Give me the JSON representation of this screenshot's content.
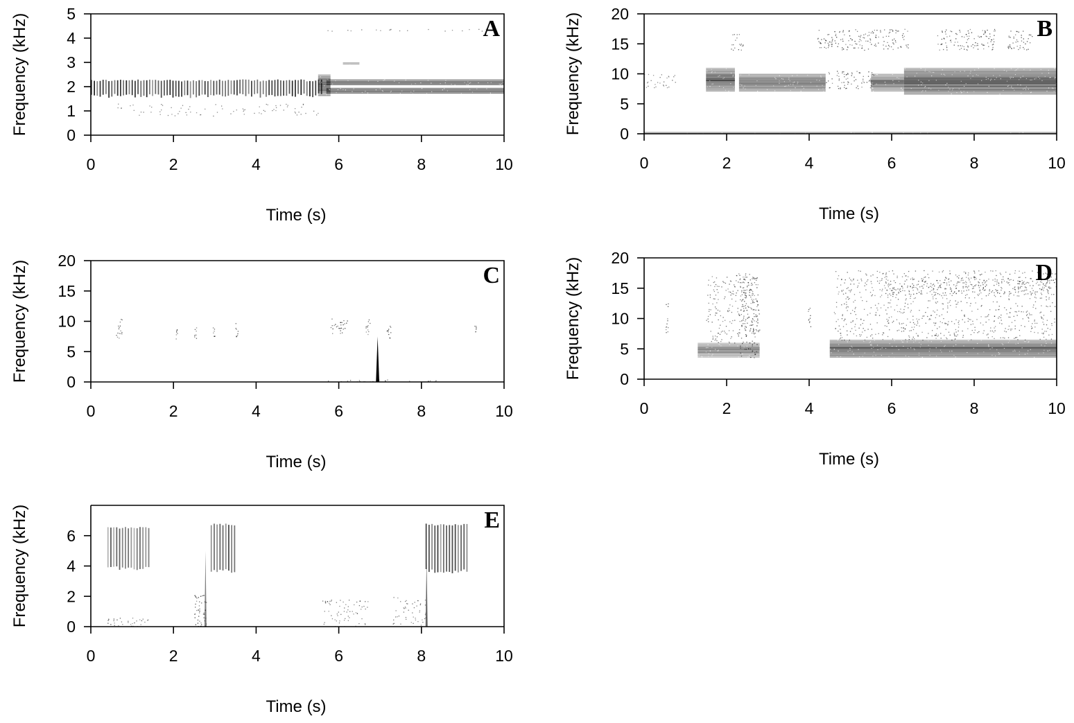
{
  "figure": {
    "panel_count": 5
  },
  "chart_data": [
    {
      "panel": "A",
      "type": "heatmap",
      "xlabel": "Time (s)",
      "ylabel": "Frequency (kHz)",
      "xlim": [
        0,
        10
      ],
      "ylim": [
        0,
        5
      ],
      "xticks": [
        0,
        2,
        4,
        6,
        8,
        10
      ],
      "yticks": [
        0,
        1,
        2,
        3,
        4,
        5
      ],
      "energy": [
        {
          "t": [
            0.0,
            5.6
          ],
          "f": [
            1.6,
            2.3
          ],
          "level": 0.85,
          "style": "pulses"
        },
        {
          "t": [
            5.5,
            5.8
          ],
          "f": [
            1.6,
            2.5
          ],
          "level": 0.9,
          "style": "band"
        },
        {
          "t": [
            5.7,
            10.0
          ],
          "f": [
            2.05,
            2.3
          ],
          "level": 1.0,
          "style": "band"
        },
        {
          "t": [
            5.7,
            10.0
          ],
          "f": [
            1.7,
            1.95
          ],
          "level": 1.0,
          "style": "band"
        },
        {
          "t": [
            6.1,
            6.5
          ],
          "f": [
            2.9,
            3.0
          ],
          "level": 0.5,
          "style": "band"
        },
        {
          "t": [
            5.7,
            9.8
          ],
          "f": [
            4.3,
            4.4
          ],
          "level": 0.25,
          "style": "speckle"
        },
        {
          "t": [
            0.6,
            5.5
          ],
          "f": [
            0.8,
            1.3
          ],
          "level": 0.2,
          "style": "speckle"
        }
      ]
    },
    {
      "panel": "B",
      "type": "heatmap",
      "xlabel": "Time (s)",
      "ylabel": "Frequency (kHz)",
      "xlim": [
        0,
        10
      ],
      "ylim": [
        0,
        20
      ],
      "xticks": [
        0,
        2,
        4,
        6,
        8,
        10
      ],
      "yticks": [
        0,
        5,
        10,
        15,
        20
      ],
      "energy": [
        {
          "t": [
            0.0,
            0.8
          ],
          "f": [
            7.5,
            10.0
          ],
          "level": 0.3,
          "style": "speckle"
        },
        {
          "t": [
            1.5,
            2.2
          ],
          "f": [
            7.0,
            11.0
          ],
          "level": 0.9,
          "style": "band"
        },
        {
          "t": [
            2.3,
            4.4
          ],
          "f": [
            7.0,
            10.0
          ],
          "level": 0.85,
          "style": "band"
        },
        {
          "t": [
            4.4,
            5.6
          ],
          "f": [
            7.5,
            10.5
          ],
          "level": 0.5,
          "style": "speckle"
        },
        {
          "t": [
            5.5,
            6.3
          ],
          "f": [
            7.0,
            10.0
          ],
          "level": 0.8,
          "style": "band"
        },
        {
          "t": [
            6.3,
            10.0
          ],
          "f": [
            6.5,
            11.0
          ],
          "level": 1.0,
          "style": "band"
        },
        {
          "t": [
            2.1,
            2.4
          ],
          "f": [
            14.0,
            17.0
          ],
          "level": 0.4,
          "style": "speckle"
        },
        {
          "t": [
            4.2,
            6.4
          ],
          "f": [
            14.0,
            17.5
          ],
          "level": 0.55,
          "style": "speckle"
        },
        {
          "t": [
            7.1,
            8.5
          ],
          "f": [
            14.0,
            17.5
          ],
          "level": 0.55,
          "style": "speckle"
        },
        {
          "t": [
            8.8,
            9.4
          ],
          "f": [
            14.0,
            17.5
          ],
          "level": 0.5,
          "style": "speckle"
        },
        {
          "t": [
            0.0,
            10.0
          ],
          "f": [
            0.0,
            0.3
          ],
          "level": 0.7,
          "style": "band"
        }
      ]
    },
    {
      "panel": "C",
      "type": "heatmap",
      "xlabel": "Time (s)",
      "ylabel": "Frequency (kHz)",
      "xlim": [
        0,
        10
      ],
      "ylim": [
        0,
        20
      ],
      "xticks": [
        0,
        2,
        4,
        6,
        8,
        10
      ],
      "yticks": [
        0,
        5,
        10,
        15,
        20
      ],
      "energy": [
        {
          "t": [
            0.6,
            0.75
          ],
          "f": [
            7.0,
            10.5
          ],
          "level": 0.5,
          "style": "speckle"
        },
        {
          "t": [
            2.05,
            2.1
          ],
          "f": [
            7.0,
            9.0
          ],
          "level": 0.4,
          "style": "speckle"
        },
        {
          "t": [
            2.5,
            2.55
          ],
          "f": [
            7.0,
            9.0
          ],
          "level": 0.4,
          "style": "speckle"
        },
        {
          "t": [
            2.95,
            3.0
          ],
          "f": [
            7.5,
            9.5
          ],
          "level": 0.4,
          "style": "speckle"
        },
        {
          "t": [
            3.5,
            3.57
          ],
          "f": [
            7.5,
            10.0
          ],
          "level": 0.4,
          "style": "speckle"
        },
        {
          "t": [
            5.8,
            6.2
          ],
          "f": [
            8.0,
            10.5
          ],
          "level": 0.6,
          "style": "speckle"
        },
        {
          "t": [
            6.65,
            6.75
          ],
          "f": [
            7.5,
            10.5
          ],
          "level": 0.5,
          "style": "speckle"
        },
        {
          "t": [
            7.15,
            7.25
          ],
          "f": [
            7.0,
            9.5
          ],
          "level": 0.5,
          "style": "speckle"
        },
        {
          "t": [
            9.28,
            9.33
          ],
          "f": [
            8.0,
            9.5
          ],
          "level": 0.4,
          "style": "speckle"
        },
        {
          "t": [
            5.7,
            8.4
          ],
          "f": [
            0.0,
            0.4
          ],
          "level": 0.5,
          "style": "speckle"
        },
        {
          "t": [
            6.9,
            6.98
          ],
          "f": [
            0.0,
            7.5
          ],
          "level": 1.0,
          "style": "spike"
        }
      ]
    },
    {
      "panel": "D",
      "type": "heatmap",
      "xlabel": "Time (s)",
      "ylabel": "Frequency (kHz)",
      "xlim": [
        0,
        10
      ],
      "ylim": [
        0,
        20
      ],
      "xticks": [
        0,
        2,
        4,
        6,
        8,
        10
      ],
      "yticks": [
        0,
        5,
        10,
        15,
        20
      ],
      "energy": [
        {
          "t": [
            0.52,
            0.58
          ],
          "f": [
            7.5,
            12.5
          ],
          "level": 0.5,
          "style": "speckle"
        },
        {
          "t": [
            1.3,
            2.8
          ],
          "f": [
            3.5,
            6.0
          ],
          "level": 0.7,
          "style": "band"
        },
        {
          "t": [
            1.5,
            2.8
          ],
          "f": [
            6.0,
            17.5
          ],
          "level": 0.35,
          "style": "speckle"
        },
        {
          "t": [
            2.3,
            2.75
          ],
          "f": [
            3.5,
            17.0
          ],
          "level": 0.6,
          "style": "speckle"
        },
        {
          "t": [
            3.97,
            4.03
          ],
          "f": [
            8.5,
            12.0
          ],
          "level": 0.5,
          "style": "speckle"
        },
        {
          "t": [
            4.5,
            10.0
          ],
          "f": [
            3.5,
            6.5
          ],
          "level": 0.9,
          "style": "band"
        },
        {
          "t": [
            4.6,
            10.0
          ],
          "f": [
            6.5,
            18.0
          ],
          "level": 0.35,
          "style": "speckle"
        },
        {
          "t": [
            5.8,
            10.0
          ],
          "f": [
            14.0,
            17.0
          ],
          "level": 0.5,
          "style": "speckle"
        }
      ]
    },
    {
      "panel": "E",
      "type": "heatmap",
      "xlabel": "Time (s)",
      "ylabel": "Frequency (kHz)",
      "xlim": [
        0,
        10
      ],
      "ylim": [
        0,
        8
      ],
      "xticks": [
        0,
        2,
        4,
        6,
        8,
        10
      ],
      "yticks": [
        0,
        2,
        4,
        6
      ],
      "energy": [
        {
          "t": [
            0.4,
            1.4
          ],
          "f": [
            3.8,
            6.6
          ],
          "level": 0.65,
          "style": "pulses"
        },
        {
          "t": [
            2.9,
            3.5
          ],
          "f": [
            3.6,
            6.8
          ],
          "level": 0.7,
          "style": "pulses"
        },
        {
          "t": [
            8.1,
            9.1
          ],
          "f": [
            3.6,
            6.8
          ],
          "level": 0.75,
          "style": "pulses"
        },
        {
          "t": [
            2.5,
            2.8
          ],
          "f": [
            0.0,
            2.1
          ],
          "level": 0.7,
          "style": "speckle"
        },
        {
          "t": [
            2.75,
            2.8
          ],
          "f": [
            0.0,
            5.0
          ],
          "level": 0.5,
          "style": "spike"
        },
        {
          "t": [
            5.6,
            6.7
          ],
          "f": [
            1.6,
            1.8
          ],
          "level": 0.4,
          "style": "speckle"
        },
        {
          "t": [
            5.6,
            6.7
          ],
          "f": [
            0.0,
            1.8
          ],
          "level": 0.25,
          "style": "speckle"
        },
        {
          "t": [
            7.3,
            8.1
          ],
          "f": [
            0.0,
            2.0
          ],
          "level": 0.3,
          "style": "speckle"
        },
        {
          "t": [
            8.1,
            8.15
          ],
          "f": [
            0.0,
            4.5
          ],
          "level": 0.6,
          "style": "spike"
        },
        {
          "t": [
            0.4,
            1.4
          ],
          "f": [
            0.0,
            0.6
          ],
          "level": 0.5,
          "style": "speckle"
        }
      ]
    }
  ]
}
